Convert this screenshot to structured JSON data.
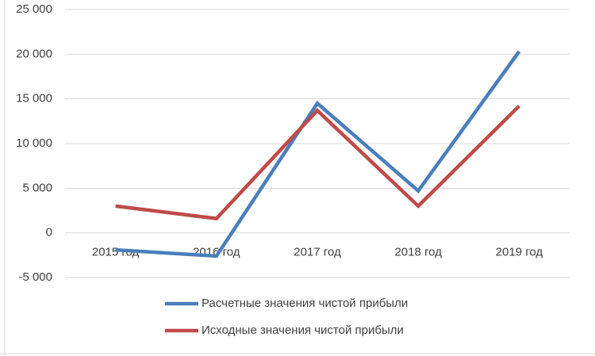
{
  "chart_data": {
    "type": "line",
    "categories": [
      "2015 год",
      "2016 год",
      "2017 год",
      "2018 год",
      "2019 год"
    ],
    "series": [
      {
        "name": "Расчетные значения чистой прибыли",
        "color": "#4a7ebb",
        "values": [
          -1900,
          -2600,
          14500,
          4700,
          20300
        ]
      },
      {
        "name": "Исходные значения чистой прибыли",
        "color": "#be4b48",
        "values": [
          3000,
          1600,
          13700,
          3000,
          14200
        ]
      }
    ],
    "ylim": [
      -5000,
      25000
    ],
    "yticks": [
      {
        "value": -5000,
        "label": "-5 000"
      },
      0,
      {
        "value": 5000,
        "label": "5 000"
      },
      {
        "value": 10000,
        "label": "10 000"
      },
      {
        "value": 15000,
        "label": "15 000"
      },
      {
        "value": 20000,
        "label": "20 000"
      },
      {
        "value": 25000,
        "label": "25 000"
      }
    ],
    "grid": true,
    "legend": "bottom"
  }
}
